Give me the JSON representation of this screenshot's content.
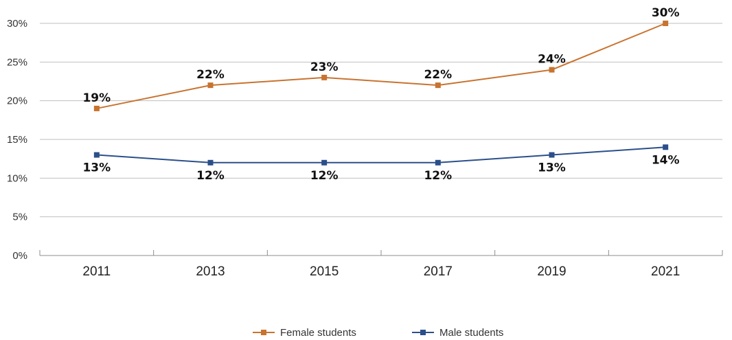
{
  "chart_data": {
    "type": "line",
    "categories": [
      "2011",
      "2013",
      "2015",
      "2017",
      "2019",
      "2021"
    ],
    "series": [
      {
        "name": "Female students",
        "values": [
          19,
          22,
          23,
          22,
          24,
          30
        ],
        "labels": [
          "19%",
          "22%",
          "23%",
          "22%",
          "24%",
          "30%"
        ],
        "color": "#c8732f"
      },
      {
        "name": "Male students",
        "values": [
          13,
          12,
          12,
          12,
          13,
          14
        ],
        "labels": [
          "13%",
          "12%",
          "12%",
          "12%",
          "13%",
          "14%"
        ],
        "color": "#2b4f8a"
      }
    ],
    "yticks": [
      "0%",
      "5%",
      "10%",
      "15%",
      "20%",
      "25%",
      "30%"
    ],
    "ylim": [
      0,
      30
    ],
    "grid": true,
    "legend": "bottom-center",
    "title": "",
    "xlabel": "",
    "ylabel": ""
  }
}
